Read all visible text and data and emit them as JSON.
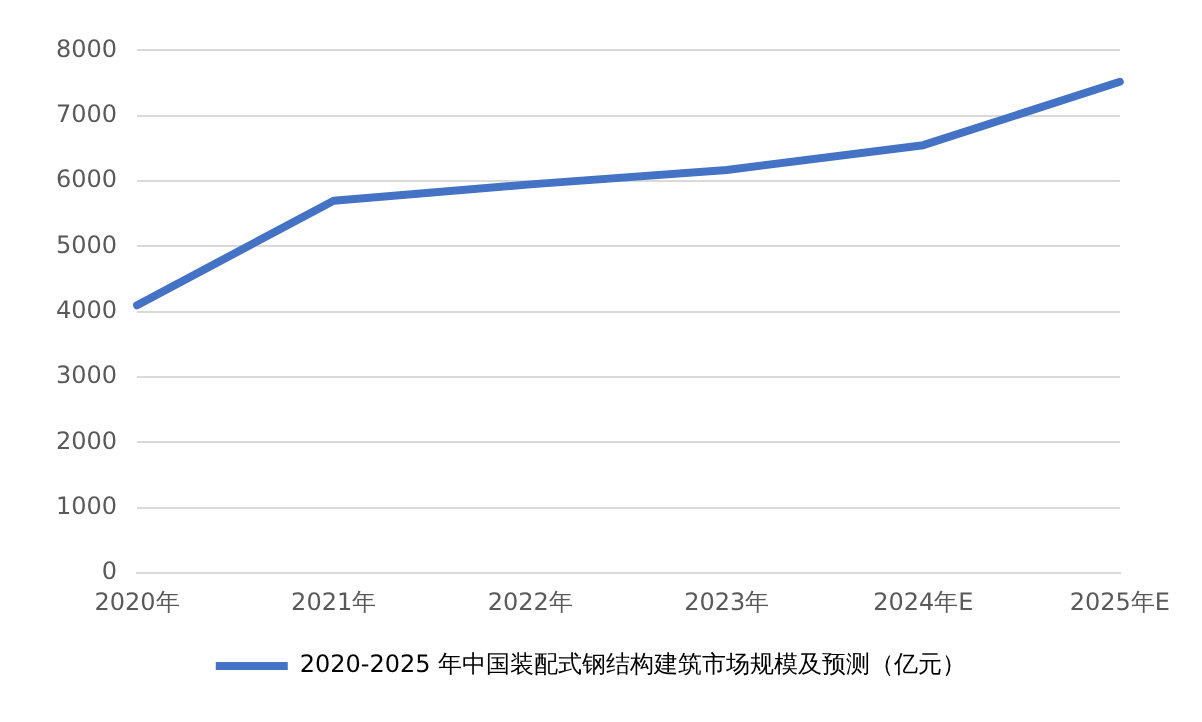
{
  "chart_data": {
    "type": "line",
    "categories": [
      "2020年",
      "2021年",
      "2022年",
      "2023年",
      "2024年E",
      "2025年E"
    ],
    "series": [
      {
        "name": "2020-2025 年中国装配式钢结构建筑市场规模及预测（亿元）",
        "color": "#4472c4",
        "values": [
          4100,
          5700,
          5950,
          6170,
          6550,
          7520
        ]
      }
    ],
    "ylim": [
      0,
      8000
    ],
    "yticks": [
      0,
      1000,
      2000,
      3000,
      4000,
      5000,
      6000,
      7000,
      8000
    ],
    "grid": "y",
    "legend": "bottom",
    "marker": "none",
    "line_style": "solid"
  }
}
